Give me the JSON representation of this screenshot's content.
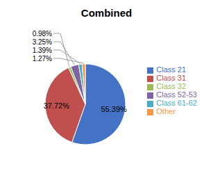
{
  "chart_data": {
    "type": "pie",
    "title": "Combined",
    "categories": [
      "Class 21",
      "Class 31",
      "Class 32",
      "Class 52-53",
      "Class 61-62",
      "Other"
    ],
    "values": [
      55.39,
      37.72,
      0.98,
      3.25,
      1.39,
      1.27
    ],
    "value_labels": [
      "55.39%",
      "37.72%",
      "0.98%",
      "3.25%",
      "1.39%",
      "1.27%"
    ],
    "colors": [
      "#4472C4",
      "#C0504D",
      "#9BBB59",
      "#8064A2",
      "#4BACC6",
      "#F79646"
    ],
    "legend": "right",
    "data_labels": true
  }
}
